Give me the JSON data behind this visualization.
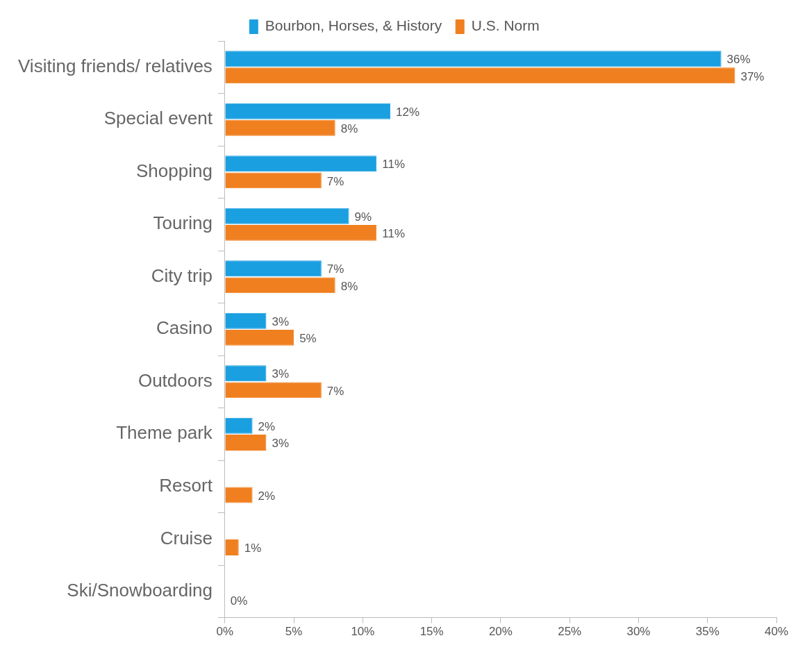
{
  "chart_data": {
    "type": "bar",
    "orientation": "horizontal",
    "legend": "top",
    "categories": [
      "Visiting friends/ relatives",
      "Special event",
      "Shopping",
      "Touring",
      "City trip",
      "Casino",
      "Outdoors",
      "Theme park",
      "Resort",
      "Cruise",
      "Ski/Snowboarding"
    ],
    "series": [
      {
        "name": "Bourbon, Horses, & History",
        "color": "#1a9fe0",
        "values": [
          36,
          12,
          11,
          9,
          7,
          3,
          3,
          2,
          null,
          null,
          null
        ],
        "value_labels": [
          "36%",
          "12%",
          "11%",
          "9%",
          "7%",
          "3%",
          "3%",
          "2%",
          null,
          null,
          null
        ]
      },
      {
        "name": "U.S. Norm",
        "color": "#f07f1f",
        "values": [
          37,
          8,
          7,
          11,
          8,
          5,
          7,
          3,
          2,
          1,
          0
        ],
        "value_labels": [
          "37%",
          "8%",
          "7%",
          "11%",
          "8%",
          "5%",
          "7%",
          "3%",
          "2%",
          "1%",
          "0%"
        ]
      }
    ],
    "xlim": [
      0,
      40
    ],
    "xticks": [
      {
        "value": 0,
        "label": "0%"
      },
      {
        "value": 5,
        "label": "5%"
      },
      {
        "value": 10,
        "label": "10%"
      },
      {
        "value": 15,
        "label": "15%"
      },
      {
        "value": 20,
        "label": "20%"
      },
      {
        "value": 25,
        "label": "25%"
      },
      {
        "value": 30,
        "label": "30%"
      },
      {
        "value": 35,
        "label": "35%"
      },
      {
        "value": 40,
        "label": "40%"
      }
    ]
  }
}
